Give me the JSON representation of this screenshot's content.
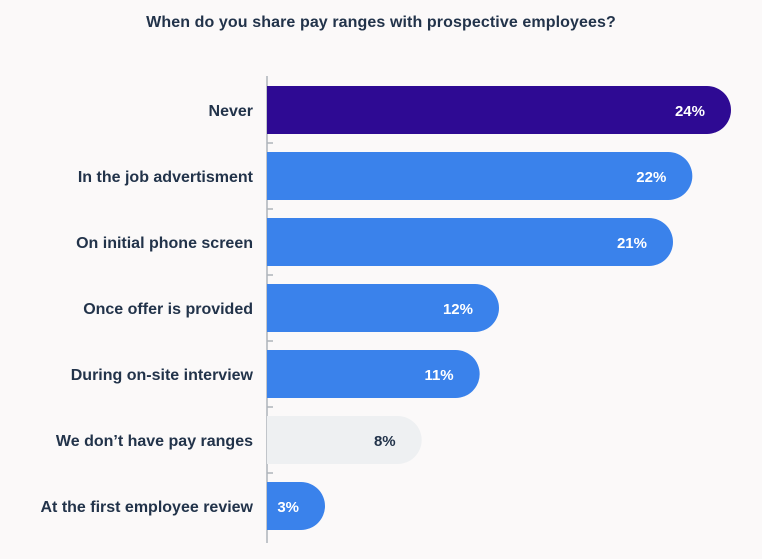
{
  "chart_data": {
    "type": "bar",
    "orientation": "horizontal",
    "title": "When do you share pay ranges with prospective employees?",
    "xlabel": "",
    "ylabel": "",
    "xlim": [
      0,
      24
    ],
    "grid": false,
    "categories": [
      "Never",
      "In the job advertisment",
      "On initial phone screen",
      "Once offer is provided",
      "During on-site interview",
      "We don’t have pay ranges",
      "At the first employee review"
    ],
    "values": [
      24,
      22,
      21,
      12,
      11,
      8,
      3
    ],
    "value_labels": [
      "24%",
      "22%",
      "21%",
      "12%",
      "11%",
      "8%",
      "3%"
    ],
    "bar_colors": [
      "#2e0a93",
      "#3a82eb",
      "#3a82eb",
      "#3a82eb",
      "#3a82eb",
      "#eef0f2",
      "#3a82eb"
    ],
    "value_label_colors": [
      "#ffffff",
      "#ffffff",
      "#ffffff",
      "#ffffff",
      "#ffffff",
      "#22334a",
      "#ffffff"
    ]
  }
}
